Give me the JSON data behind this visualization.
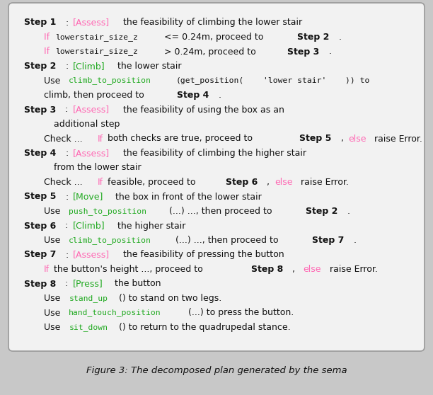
{
  "fig_width": 6.12,
  "fig_height": 5.58,
  "dpi": 100,
  "bg_color": "#c8c8c8",
  "box_facecolor": "#f2f2f2",
  "box_edgecolor": "#999999",
  "colors": {
    "black": "#111111",
    "pink": "#ff69b4",
    "green": "#22aa22"
  },
  "lines": [
    {
      "indent": 0,
      "parts": [
        {
          "t": "Step 1",
          "b": true,
          "c": "black",
          "m": false
        },
        {
          "t": ": ",
          "b": false,
          "c": "black",
          "m": false
        },
        {
          "t": "[Assess]",
          "b": false,
          "c": "pink",
          "m": false
        },
        {
          "t": " the feasibility of climbing the lower stair",
          "b": false,
          "c": "black",
          "m": false
        }
      ]
    },
    {
      "indent": 1,
      "parts": [
        {
          "t": "If ",
          "b": false,
          "c": "pink",
          "m": false
        },
        {
          "t": "lowerstair_size_z",
          "b": false,
          "c": "black",
          "m": true
        },
        {
          "t": " <= 0.24m, proceed to ",
          "b": false,
          "c": "black",
          "m": false
        },
        {
          "t": "Step 2",
          "b": true,
          "c": "black",
          "m": false
        },
        {
          "t": ".",
          "b": false,
          "c": "black",
          "m": false
        }
      ]
    },
    {
      "indent": 1,
      "parts": [
        {
          "t": "If ",
          "b": false,
          "c": "pink",
          "m": false
        },
        {
          "t": "lowerstair_size_z",
          "b": false,
          "c": "black",
          "m": true
        },
        {
          "t": " > 0.24m, proceed to ",
          "b": false,
          "c": "black",
          "m": false
        },
        {
          "t": "Step 3",
          "b": true,
          "c": "black",
          "m": false
        },
        {
          "t": ".",
          "b": false,
          "c": "black",
          "m": false
        }
      ]
    },
    {
      "indent": 0,
      "parts": [
        {
          "t": "Step 2",
          "b": true,
          "c": "black",
          "m": false
        },
        {
          "t": ": ",
          "b": false,
          "c": "black",
          "m": false
        },
        {
          "t": "[Climb]",
          "b": false,
          "c": "green",
          "m": false
        },
        {
          "t": " the lower stair",
          "b": false,
          "c": "black",
          "m": false
        }
      ]
    },
    {
      "indent": 1,
      "parts": [
        {
          "t": "Use ",
          "b": false,
          "c": "black",
          "m": false
        },
        {
          "t": "climb_to_position",
          "b": false,
          "c": "green",
          "m": true
        },
        {
          "t": "(get_position(",
          "b": false,
          "c": "black",
          "m": true
        },
        {
          "t": "'lower stair'",
          "b": false,
          "c": "black",
          "m": true
        },
        {
          "t": ")) to",
          "b": false,
          "c": "black",
          "m": true
        }
      ]
    },
    {
      "indent": 1,
      "parts": [
        {
          "t": "climb, then proceed to ",
          "b": false,
          "c": "black",
          "m": false
        },
        {
          "t": "Step 4",
          "b": true,
          "c": "black",
          "m": false
        },
        {
          "t": ".",
          "b": false,
          "c": "black",
          "m": false
        }
      ]
    },
    {
      "indent": 0,
      "parts": [
        {
          "t": "Step 3",
          "b": true,
          "c": "black",
          "m": false
        },
        {
          "t": ": ",
          "b": false,
          "c": "black",
          "m": false
        },
        {
          "t": "[Assess]",
          "b": false,
          "c": "pink",
          "m": false
        },
        {
          "t": " the feasibility of using the box as an",
          "b": false,
          "c": "black",
          "m": false
        }
      ]
    },
    {
      "indent": 1,
      "extra_indent": true,
      "parts": [
        {
          "t": "additional step",
          "b": false,
          "c": "black",
          "m": false
        }
      ]
    },
    {
      "indent": 1,
      "parts": [
        {
          "t": "Check ... ",
          "b": false,
          "c": "black",
          "m": false
        },
        {
          "t": "If",
          "b": false,
          "c": "pink",
          "m": false
        },
        {
          "t": " both checks are true, proceed to ",
          "b": false,
          "c": "black",
          "m": false
        },
        {
          "t": "Step 5",
          "b": true,
          "c": "black",
          "m": false
        },
        {
          "t": ", ",
          "b": false,
          "c": "black",
          "m": false
        },
        {
          "t": "else",
          "b": false,
          "c": "pink",
          "m": false
        },
        {
          "t": " raise Error.",
          "b": false,
          "c": "black",
          "m": false
        }
      ]
    },
    {
      "indent": 0,
      "parts": [
        {
          "t": "Step 4",
          "b": true,
          "c": "black",
          "m": false
        },
        {
          "t": ": ",
          "b": false,
          "c": "black",
          "m": false
        },
        {
          "t": "[Assess]",
          "b": false,
          "c": "pink",
          "m": false
        },
        {
          "t": " the feasibility of climbing the higher stair",
          "b": false,
          "c": "black",
          "m": false
        }
      ]
    },
    {
      "indent": 1,
      "extra_indent": true,
      "parts": [
        {
          "t": "from the lower stair",
          "b": false,
          "c": "black",
          "m": false
        }
      ]
    },
    {
      "indent": 1,
      "parts": [
        {
          "t": "Check ... ",
          "b": false,
          "c": "black",
          "m": false
        },
        {
          "t": "If",
          "b": false,
          "c": "pink",
          "m": false
        },
        {
          "t": " feasible, proceed to ",
          "b": false,
          "c": "black",
          "m": false
        },
        {
          "t": "Step 6",
          "b": true,
          "c": "black",
          "m": false
        },
        {
          "t": ", ",
          "b": false,
          "c": "black",
          "m": false
        },
        {
          "t": "else",
          "b": false,
          "c": "pink",
          "m": false
        },
        {
          "t": " raise Error.",
          "b": false,
          "c": "black",
          "m": false
        }
      ]
    },
    {
      "indent": 0,
      "parts": [
        {
          "t": "Step 5",
          "b": true,
          "c": "black",
          "m": false
        },
        {
          "t": ": ",
          "b": false,
          "c": "black",
          "m": false
        },
        {
          "t": "[Move]",
          "b": false,
          "c": "green",
          "m": false
        },
        {
          "t": " the box in front of the lower stair",
          "b": false,
          "c": "black",
          "m": false
        }
      ]
    },
    {
      "indent": 1,
      "parts": [
        {
          "t": "Use ",
          "b": false,
          "c": "black",
          "m": false
        },
        {
          "t": "push_to_position",
          "b": false,
          "c": "green",
          "m": true
        },
        {
          "t": "(...) ..., then proceed to ",
          "b": false,
          "c": "black",
          "m": false
        },
        {
          "t": "Step 2",
          "b": true,
          "c": "black",
          "m": false
        },
        {
          "t": ".",
          "b": false,
          "c": "black",
          "m": false
        }
      ]
    },
    {
      "indent": 0,
      "parts": [
        {
          "t": "Step 6",
          "b": true,
          "c": "black",
          "m": false
        },
        {
          "t": ": ",
          "b": false,
          "c": "black",
          "m": false
        },
        {
          "t": "[Climb]",
          "b": false,
          "c": "green",
          "m": false
        },
        {
          "t": " the higher stair",
          "b": false,
          "c": "black",
          "m": false
        }
      ]
    },
    {
      "indent": 1,
      "parts": [
        {
          "t": "Use ",
          "b": false,
          "c": "black",
          "m": false
        },
        {
          "t": "climb_to_position",
          "b": false,
          "c": "green",
          "m": true
        },
        {
          "t": "(...) ..., then proceed to ",
          "b": false,
          "c": "black",
          "m": false
        },
        {
          "t": "Step 7",
          "b": true,
          "c": "black",
          "m": false
        },
        {
          "t": ".",
          "b": false,
          "c": "black",
          "m": false
        }
      ]
    },
    {
      "indent": 0,
      "parts": [
        {
          "t": "Step 7",
          "b": true,
          "c": "black",
          "m": false
        },
        {
          "t": ": ",
          "b": false,
          "c": "black",
          "m": false
        },
        {
          "t": "[Assess]",
          "b": false,
          "c": "pink",
          "m": false
        },
        {
          "t": " the feasibility of pressing the button",
          "b": false,
          "c": "black",
          "m": false
        }
      ]
    },
    {
      "indent": 1,
      "parts": [
        {
          "t": "If",
          "b": false,
          "c": "pink",
          "m": false
        },
        {
          "t": " the button's height ..., proceed to ",
          "b": false,
          "c": "black",
          "m": false
        },
        {
          "t": "Step 8",
          "b": true,
          "c": "black",
          "m": false
        },
        {
          "t": ",  ",
          "b": false,
          "c": "black",
          "m": false
        },
        {
          "t": "else",
          "b": false,
          "c": "pink",
          "m": false
        },
        {
          "t": " raise Error.",
          "b": false,
          "c": "black",
          "m": false
        }
      ]
    },
    {
      "indent": 0,
      "parts": [
        {
          "t": "Step 8",
          "b": true,
          "c": "black",
          "m": false
        },
        {
          "t": ": ",
          "b": false,
          "c": "black",
          "m": false
        },
        {
          "t": "[Press]",
          "b": false,
          "c": "green",
          "m": false
        },
        {
          "t": " the button",
          "b": false,
          "c": "black",
          "m": false
        }
      ]
    },
    {
      "indent": 1,
      "parts": [
        {
          "t": "Use ",
          "b": false,
          "c": "black",
          "m": false
        },
        {
          "t": "stand_up",
          "b": false,
          "c": "green",
          "m": true
        },
        {
          "t": "() to stand on two legs.",
          "b": false,
          "c": "black",
          "m": false
        }
      ]
    },
    {
      "indent": 1,
      "parts": [
        {
          "t": "Use ",
          "b": false,
          "c": "black",
          "m": false
        },
        {
          "t": "hand_touch_position",
          "b": false,
          "c": "green",
          "m": true
        },
        {
          "t": "(...) to press the button.",
          "b": false,
          "c": "black",
          "m": false
        }
      ]
    },
    {
      "indent": 1,
      "parts": [
        {
          "t": "Use ",
          "b": false,
          "c": "black",
          "m": false
        },
        {
          "t": "sit_down",
          "b": false,
          "c": "green",
          "m": true
        },
        {
          "t": "() to return to the quadrupedal stance.",
          "b": false,
          "c": "black",
          "m": false
        }
      ]
    }
  ]
}
